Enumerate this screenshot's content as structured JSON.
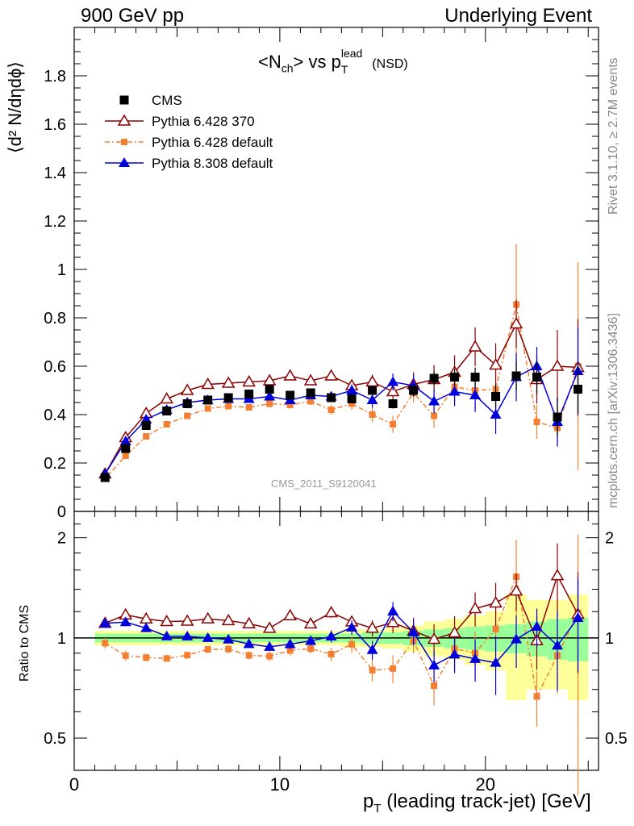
{
  "header": {
    "left": "900 GeV pp",
    "right": "Underlying Event"
  },
  "side": {
    "rivet": "Rivet 3.1.10, ≥ 2.7M events",
    "mcplots": "mcplots.cern.ch [arXiv:1306.3436]"
  },
  "plot_title": {
    "main": "<N",
    "sub1": "ch",
    "mid": "> vs p",
    "sub2": "T",
    "sup": "lead",
    "tail": " (NSD)"
  },
  "watermark": "CMS_2011_S9120041",
  "ylabel_main": "⟨d² N/dηdϕ⟩",
  "ylabel_ratio": "Ratio to CMS",
  "xlabel": {
    "p": "p",
    "sub": "T",
    "rest": " (leading track-jet) [GeV]"
  },
  "legend": [
    "CMS",
    "Pythia 6.428 370",
    "Pythia 6.428 default",
    "Pythia 8.308 default"
  ],
  "colors": {
    "cms": "#000000",
    "p6_370": "#8b0000",
    "p6_def": "#f47f30",
    "p8": "#0000dd",
    "band_inner": "#99ff99",
    "band_outer": "#ffff99"
  },
  "chart_data": {
    "type": "scatter",
    "main_panel": {
      "ylim": [
        0,
        2.0
      ],
      "xlim": [
        0,
        25.5
      ],
      "y_ticks": [
        0,
        0.2,
        0.4,
        0.6,
        0.8,
        1,
        1.2,
        1.4,
        1.6,
        1.8
      ],
      "y_tick_labels": [
        "0",
        "0.2",
        "0.4",
        "0.6",
        "0.8",
        "1",
        "1.2",
        "1.4",
        "1.6",
        "1.8"
      ]
    },
    "ratio_panel": {
      "ylim": [
        0.4,
        2.4
      ],
      "log_scale": true,
      "y_ticks": [
        0.5,
        1,
        2
      ],
      "y_tick_labels": [
        "0.5",
        "1",
        "2"
      ],
      "ratio_band_inner": [
        0.03,
        0.03,
        0.03,
        0.03,
        0.03,
        0.03,
        0.03,
        0.03,
        0.03,
        0.03,
        0.03,
        0.03,
        0.03,
        0.04,
        0.04,
        0.05,
        0.06,
        0.07,
        0.08,
        0.09,
        0.1,
        0.12,
        0.14,
        0.15
      ],
      "ratio_band_outer": [
        0.05,
        0.05,
        0.05,
        0.05,
        0.05,
        0.05,
        0.05,
        0.05,
        0.05,
        0.05,
        0.05,
        0.05,
        0.06,
        0.06,
        0.07,
        0.09,
        0.12,
        0.14,
        0.17,
        0.2,
        0.35,
        0.3,
        0.3,
        0.35
      ]
    },
    "x_ticks": [
      0,
      10,
      20
    ],
    "x_tick_labels": [
      "0",
      "10",
      "20"
    ],
    "x": [
      1.5,
      2.5,
      3.5,
      4.5,
      5.5,
      6.5,
      7.5,
      8.5,
      9.5,
      10.5,
      11.5,
      12.5,
      13.5,
      14.5,
      15.5,
      16.5,
      17.5,
      18.5,
      19.5,
      20.5,
      21.5,
      22.5,
      23.5,
      24.5
    ],
    "series": [
      {
        "name": "CMS",
        "key": "cms",
        "values": [
          0.14,
          0.26,
          0.355,
          0.415,
          0.445,
          0.46,
          0.47,
          0.485,
          0.505,
          0.48,
          0.49,
          0.47,
          0.465,
          0.5,
          0.445,
          0.5,
          0.55,
          0.555,
          0.555,
          0.475,
          0.56,
          0.555,
          0.39,
          0.505
        ],
        "errors": [
          0.005,
          0.008,
          0.008,
          0.008,
          0.008,
          0.008,
          0.008,
          0.01,
          0.01,
          0.01,
          0.01,
          0.01,
          0.012,
          0.015,
          0.02,
          0.025,
          0.03,
          0.035,
          0.04,
          0.05,
          0.06,
          0.07,
          0.08,
          0.1
        ]
      },
      {
        "name": "Pythia 6.428 370",
        "key": "p6_370",
        "values": [
          0.155,
          0.305,
          0.405,
          0.465,
          0.5,
          0.525,
          0.53,
          0.535,
          0.54,
          0.56,
          0.54,
          0.56,
          0.52,
          0.535,
          0.495,
          0.525,
          0.545,
          0.575,
          0.68,
          0.605,
          0.775,
          0.545,
          0.6,
          0.595
        ],
        "errors": [
          0.005,
          0.008,
          0.008,
          0.008,
          0.008,
          0.01,
          0.01,
          0.012,
          0.012,
          0.015,
          0.015,
          0.02,
          0.02,
          0.03,
          0.035,
          0.05,
          0.06,
          0.07,
          0.08,
          0.09,
          0.1,
          0.1,
          0.15,
          0.2
        ]
      },
      {
        "name": "Pythia 6.428 default",
        "key": "p6_def",
        "values": [
          0.135,
          0.23,
          0.31,
          0.36,
          0.395,
          0.425,
          0.435,
          0.43,
          0.445,
          0.44,
          0.455,
          0.42,
          0.445,
          0.4,
          0.36,
          0.49,
          0.395,
          0.515,
          0.5,
          0.505,
          0.855,
          0.37,
          0.345,
          0.6
        ],
        "errors": [
          0.005,
          0.008,
          0.008,
          0.008,
          0.01,
          0.01,
          0.012,
          0.012,
          0.015,
          0.015,
          0.015,
          0.02,
          0.025,
          0.03,
          0.035,
          0.04,
          0.05,
          0.07,
          0.08,
          0.1,
          0.25,
          0.07,
          0.08,
          0.43
        ]
      },
      {
        "name": "Pythia 8.308 default",
        "key": "p8",
        "values": [
          0.155,
          0.29,
          0.38,
          0.42,
          0.45,
          0.46,
          0.465,
          0.465,
          0.475,
          0.46,
          0.48,
          0.475,
          0.5,
          0.46,
          0.535,
          0.52,
          0.455,
          0.495,
          0.48,
          0.4,
          0.555,
          0.6,
          0.37,
          0.58
        ],
        "errors": [
          0.005,
          0.008,
          0.008,
          0.008,
          0.008,
          0.01,
          0.01,
          0.012,
          0.012,
          0.015,
          0.015,
          0.02,
          0.025,
          0.03,
          0.035,
          0.045,
          0.05,
          0.06,
          0.07,
          0.08,
          0.1,
          0.08,
          0.1,
          0.18
        ]
      }
    ]
  }
}
